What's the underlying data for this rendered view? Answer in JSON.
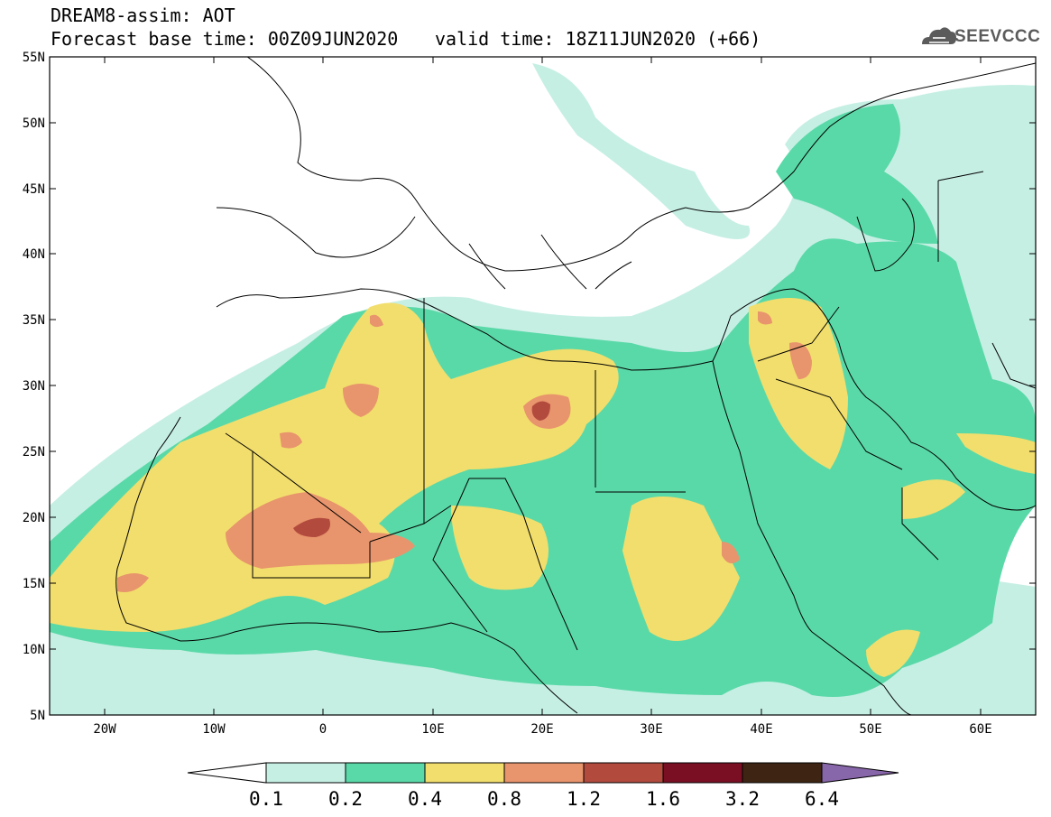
{
  "header": {
    "title": "DREAM8-assim: AOT",
    "base_time": "Forecast base time: 00Z09JUN2020",
    "valid_time": "valid time: 18Z11JUN2020 (+66)"
  },
  "logo": {
    "text": "SEEVCCC",
    "icon": "cloud-icon"
  },
  "map": {
    "variable": "AOT",
    "lon_range": [
      -25,
      65
    ],
    "lat_range": [
      5,
      55
    ],
    "lat_ticks": [
      "5N",
      "10N",
      "15N",
      "20N",
      "25N",
      "30N",
      "35N",
      "40N",
      "45N",
      "50N",
      "55N"
    ],
    "lon_ticks": [
      "20W",
      "10W",
      "0",
      "10E",
      "20E",
      "30E",
      "40E",
      "50E",
      "60E"
    ],
    "colors": {
      "0.1-0.2": "#c6efe4",
      "0.2-0.4": "#5ad9a8",
      "0.4-0.8": "#f2de6c",
      "0.8-1.2": "#e8946c",
      "1.2-1.6": "#b24b3e",
      "1.6-3.2": "#7a0f24",
      "3.2-6.4": "#3e2513",
      ">6.4": "#8866aa"
    }
  },
  "colorbar": {
    "labels": [
      "0.1",
      "0.2",
      "0.4",
      "0.8",
      "1.2",
      "1.6",
      "3.2",
      "6.4"
    ],
    "colors": [
      "#c6efe4",
      "#5ad9a8",
      "#f2de6c",
      "#e8946c",
      "#b24b3e",
      "#7a0f24",
      "#3e2513"
    ],
    "over_color": "#8866aa",
    "under_color": "#ffffff"
  }
}
